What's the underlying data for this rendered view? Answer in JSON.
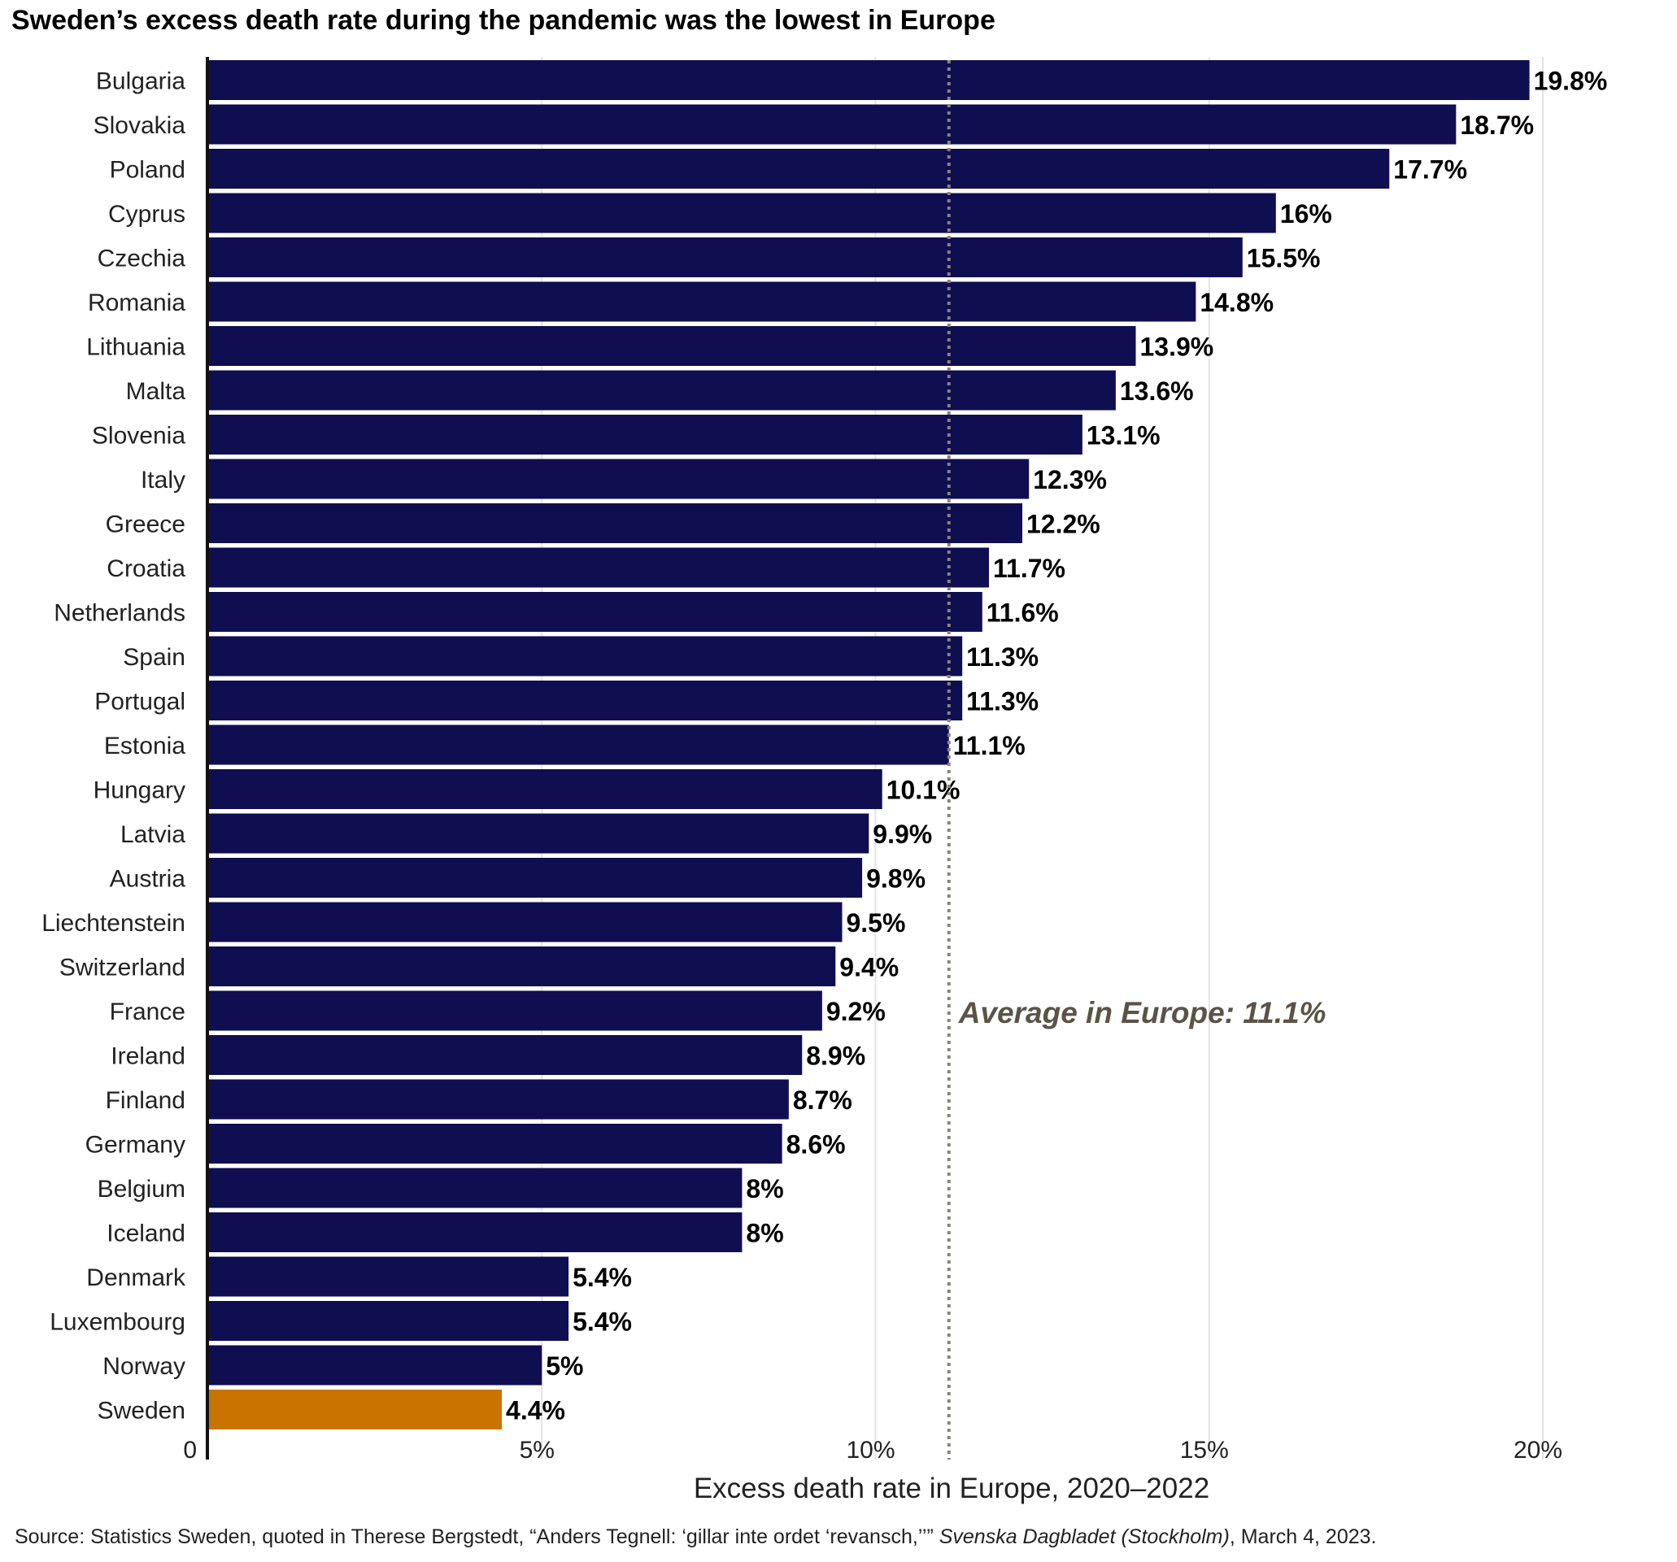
{
  "chart_data": {
    "type": "bar",
    "orientation": "horizontal",
    "title": "Sweden’s excess death rate during the pandemic was the lowest in Europe",
    "xlabel": "Excess death rate in Europe, 2020–2022",
    "ylabel": "",
    "xlim": [
      0,
      20
    ],
    "xticks": [
      {
        "value": 0,
        "label": "0"
      },
      {
        "value": 5,
        "label": "5%"
      },
      {
        "value": 10,
        "label": "10%"
      },
      {
        "value": 15,
        "label": "15%"
      },
      {
        "value": 20,
        "label": "20%"
      }
    ],
    "grid": "vertical",
    "categories": [
      "Bulgaria",
      "Slovakia",
      "Poland",
      "Cyprus",
      "Czechia",
      "Romania",
      "Lithuania",
      "Malta",
      "Slovenia",
      "Italy",
      "Greece",
      "Croatia",
      "Netherlands",
      "Spain",
      "Portugal",
      "Estonia",
      "Hungary",
      "Latvia",
      "Austria",
      "Liechtenstein",
      "Switzerland",
      "France",
      "Ireland",
      "Finland",
      "Germany",
      "Belgium",
      "Iceland",
      "Denmark",
      "Luxembourg",
      "Norway",
      "Sweden"
    ],
    "values": [
      19.8,
      18.7,
      17.7,
      16,
      15.5,
      14.8,
      13.9,
      13.6,
      13.1,
      12.3,
      12.2,
      11.7,
      11.6,
      11.3,
      11.3,
      11.1,
      10.1,
      9.9,
      9.8,
      9.5,
      9.4,
      9.2,
      8.9,
      8.7,
      8.6,
      8,
      8,
      5.4,
      5.4,
      5,
      4.4
    ],
    "value_labels": [
      "19.8%",
      "18.7%",
      "17.7%",
      "16%",
      "15.5%",
      "14.8%",
      "13.9%",
      "13.6%",
      "13.1%",
      "12.3%",
      "12.2%",
      "11.7%",
      "11.6%",
      "11.3%",
      "11.3%",
      "11.1%",
      "10.1%",
      "9.9%",
      "9.8%",
      "9.5%",
      "9.4%",
      "9.2%",
      "8.9%",
      "8.7%",
      "8.6%",
      "8%",
      "8%",
      "5.4%",
      "5.4%",
      "5%",
      "4.4%"
    ],
    "highlight_category": "Sweden",
    "colors": {
      "bar": "#0e0e50",
      "highlight": "#c97400",
      "reference_line": "#8a8478",
      "annotation": "#5b5346",
      "grid": "#e3e3e3"
    },
    "reference_line": {
      "value": 11.1,
      "label": "Average in Europe: 11.1%",
      "style": "dotted"
    }
  },
  "source": {
    "prefix": "Source: Statistics Sweden, quoted in Therese Bergstedt, “Anders Tegnell: ‘gillar inte ordet ‘revansch,’’” ",
    "publication": "Svenska Dagbladet (Stockholm)",
    "suffix": ", March 4, 2023."
  }
}
